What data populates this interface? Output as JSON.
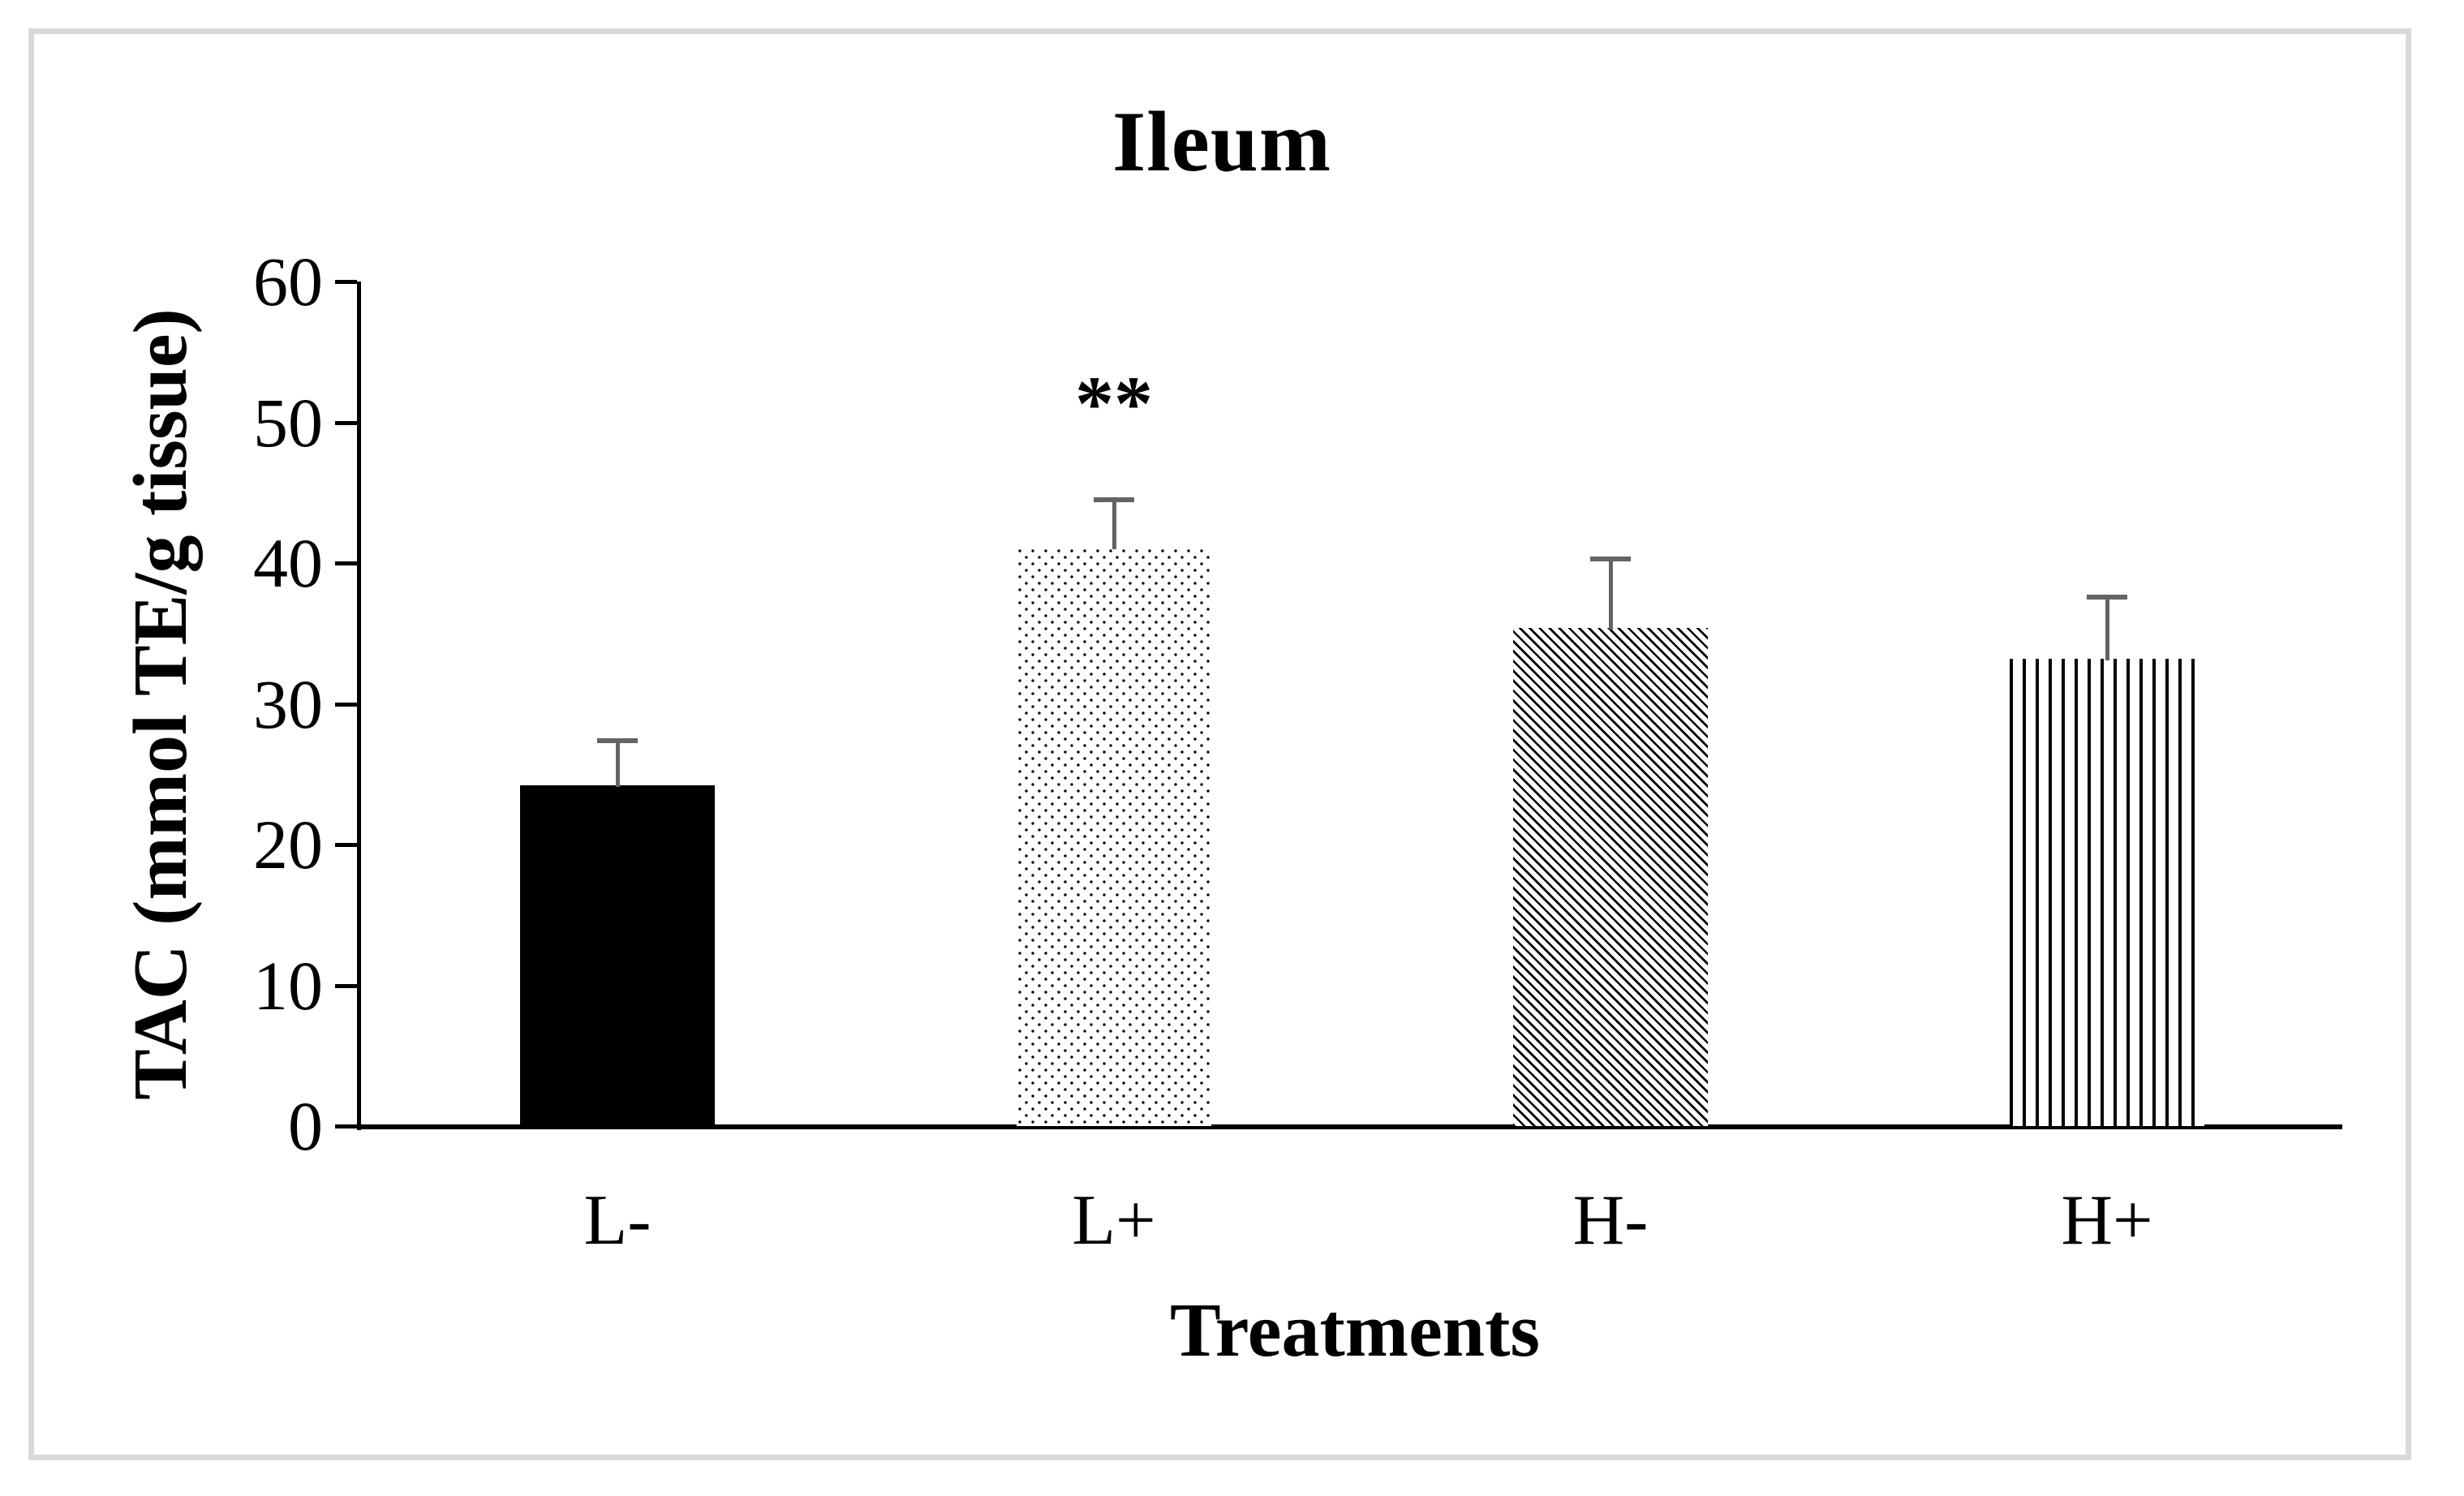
{
  "figure": {
    "kind": "published-scientific-bar-chart",
    "background": "#ffffff"
  },
  "colors": {
    "text": "#000000",
    "axis": "#000000",
    "bar_ink": "#000000",
    "error_bar": "#646464",
    "frame_border": "#d9d9d9",
    "background": "#ffffff"
  },
  "chart_data": {
    "type": "bar",
    "title": "Ileum",
    "xlabel": "Treatments",
    "ylabel": "TAC (mmol TE/g tissue)",
    "categories": [
      "L-",
      "L+",
      "H-",
      "H+"
    ],
    "values": [
      24.2,
      41.1,
      35.4,
      33.2
    ],
    "error_plus": [
      3.2,
      3.4,
      4.9,
      4.4
    ],
    "bar_patterns": [
      "solid",
      "dots",
      "diagonal-stripes",
      "vertical-stripes"
    ],
    "annotations": [
      {
        "category": "L+",
        "text": "**",
        "meaning": "significance-marker"
      }
    ],
    "ylim": [
      0,
      60
    ],
    "yticks": [
      0,
      10,
      20,
      30,
      40,
      50,
      60
    ],
    "grid": false,
    "legend": "none"
  }
}
